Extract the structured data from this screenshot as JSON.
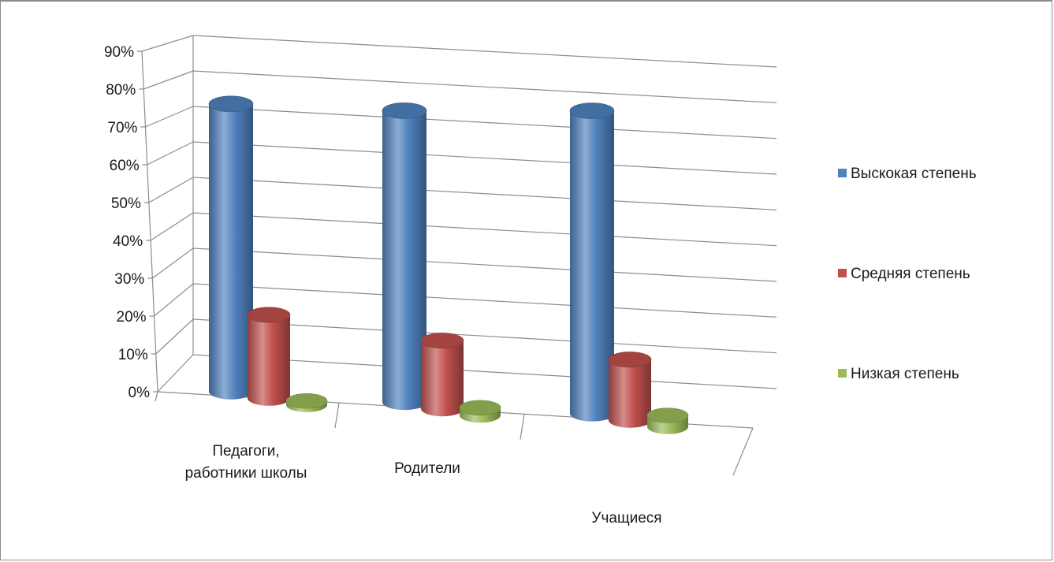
{
  "chart_data": {
    "type": "bar",
    "title": "",
    "xlabel": "",
    "ylabel": "",
    "ylim": [
      0,
      0.9
    ],
    "yticks": [
      "0%",
      "10%",
      "20%",
      "30%",
      "40%",
      "50%",
      "60%",
      "70%",
      "80%",
      "90%"
    ],
    "categories": [
      "Педагоги, работники школы",
      "Родители",
      "Учащиеся"
    ],
    "category_lines": [
      [
        "Педагоги,",
        "работники школы"
      ],
      [
        "Родители"
      ],
      [
        "Учащиеся"
      ]
    ],
    "series": [
      {
        "name": "Выскокая степень",
        "values": [
          0.76,
          0.77,
          0.8
        ],
        "color": "#4f81bd"
      },
      {
        "name": "Средняя степень",
        "values": [
          0.22,
          0.18,
          0.16
        ],
        "color": "#c0504d"
      },
      {
        "name": "Низкая степень",
        "values": [
          0.01,
          0.02,
          0.03
        ],
        "color": "#9bbb59"
      }
    ],
    "grid": true,
    "legend_position": "right",
    "style": "3d-cylinder"
  }
}
